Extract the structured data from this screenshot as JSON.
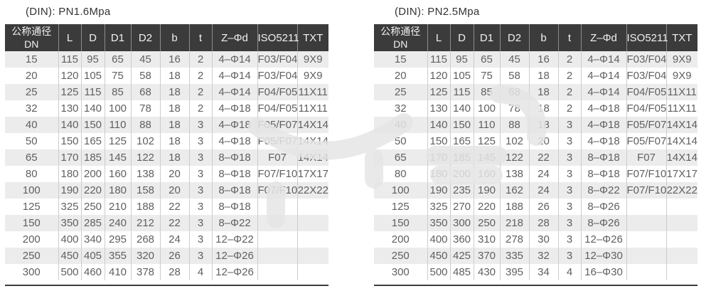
{
  "colors": {
    "header_bg": "#3b3b3b",
    "header_text": "#f1f1f1",
    "row_stripe": "#ececec",
    "row_base": "#ffffff",
    "body_text": "#606060",
    "title_text": "#333333",
    "column_divider": "#cccccc",
    "header_divider": "#8d8d8d",
    "bottom_rule": "#3c3c3c",
    "watermark": "#e6e6e6"
  },
  "tables": [
    {
      "title": "(DIN): PN1.6Mpa",
      "header": {
        "dn_line1": "公称通径",
        "dn_line2": "DN",
        "cols": [
          "L",
          "D",
          "D1",
          "D2",
          "b",
          "t",
          "Z–Φd",
          "ISO5211",
          "TXT"
        ]
      },
      "rows": [
        [
          "15",
          "115",
          "95",
          "65",
          "45",
          "16",
          "2",
          "4–Φ14",
          "F03/F04",
          "9X9"
        ],
        [
          "20",
          "120",
          "105",
          "75",
          "58",
          "18",
          "2",
          "4–Φ14",
          "F03/F04",
          "9X9"
        ],
        [
          "25",
          "125",
          "115",
          "85",
          "68",
          "18",
          "2",
          "4–Φ14",
          "F04/F05",
          "11X11"
        ],
        [
          "32",
          "130",
          "140",
          "100",
          "78",
          "18",
          "2",
          "4–Φ18",
          "F04/F05",
          "11X11"
        ],
        [
          "40",
          "140",
          "150",
          "110",
          "88",
          "18",
          "3",
          "4–Φ18",
          "F05/F07",
          "14X14"
        ],
        [
          "50",
          "150",
          "165",
          "125",
          "102",
          "18",
          "3",
          "4–Φ18",
          "F05/F07",
          "14X14"
        ],
        [
          "65",
          "170",
          "185",
          "145",
          "122",
          "18",
          "3",
          "8–Φ18",
          "F07",
          "14X14"
        ],
        [
          "80",
          "180",
          "200",
          "160",
          "138",
          "20",
          "3",
          "8–Φ18",
          "F07/F10",
          "17X17"
        ],
        [
          "100",
          "190",
          "220",
          "180",
          "158",
          "20",
          "3",
          "8–Φ18",
          "F07/F10",
          "22X22"
        ],
        [
          "125",
          "325",
          "250",
          "210",
          "188",
          "22",
          "3",
          "8–Φ18",
          "",
          ""
        ],
        [
          "150",
          "350",
          "285",
          "240",
          "212",
          "22",
          "3",
          "8–Φ22",
          "",
          ""
        ],
        [
          "200",
          "400",
          "340",
          "295",
          "268",
          "24",
          "3",
          "12–Φ22",
          "",
          ""
        ],
        [
          "250",
          "450",
          "405",
          "355",
          "320",
          "26",
          "3",
          "12–Φ26",
          "",
          ""
        ],
        [
          "300",
          "500",
          "460",
          "410",
          "378",
          "28",
          "4",
          "12–Φ26",
          "",
          ""
        ]
      ]
    },
    {
      "title": "(DIN): PN2.5Mpa",
      "header": {
        "dn_line1": "公称通径",
        "dn_line2": "DN",
        "cols": [
          "L",
          "D",
          "D1",
          "D2",
          "b",
          "t",
          "Z–Φd",
          "ISO5211",
          "TXT"
        ]
      },
      "rows": [
        [
          "15",
          "115",
          "95",
          "65",
          "45",
          "16",
          "2",
          "4–Φ14",
          "F03/F04",
          "9X9"
        ],
        [
          "20",
          "120",
          "105",
          "75",
          "58",
          "18",
          "2",
          "4–Φ14",
          "F03/F04",
          "9X9"
        ],
        [
          "25",
          "125",
          "115",
          "85",
          "68",
          "18",
          "2",
          "4–Φ14",
          "F04/F05",
          "11X11"
        ],
        [
          "32",
          "130",
          "140",
          "100",
          "78",
          "18",
          "2",
          "4–Φ18",
          "F04/F05",
          "11X11"
        ],
        [
          "40",
          "140",
          "150",
          "110",
          "88",
          "18",
          "3",
          "4–Φ18",
          "F05/F07",
          "14X14"
        ],
        [
          "50",
          "150",
          "165",
          "125",
          "102",
          "20",
          "3",
          "4–Φ18",
          "F05/F07",
          "14X14"
        ],
        [
          "65",
          "170",
          "185",
          "145",
          "122",
          "22",
          "3",
          "8–Φ18",
          "F07",
          "14X14"
        ],
        [
          "80",
          "180",
          "200",
          "160",
          "138",
          "24",
          "3",
          "8–Φ18",
          "F07/F10",
          "17X17"
        ],
        [
          "100",
          "190",
          "235",
          "190",
          "162",
          "24",
          "3",
          "8–Φ22",
          "F07/F10",
          "22X22"
        ],
        [
          "125",
          "325",
          "270",
          "220",
          "188",
          "26",
          "3",
          "8–Φ26",
          "",
          ""
        ],
        [
          "150",
          "350",
          "300",
          "250",
          "218",
          "28",
          "3",
          "8–Φ26",
          "",
          ""
        ],
        [
          "200",
          "400",
          "360",
          "310",
          "278",
          "30",
          "3",
          "12–Φ26",
          "",
          ""
        ],
        [
          "250",
          "450",
          "425",
          "370",
          "335",
          "32",
          "3",
          "12–Φ30",
          "",
          ""
        ],
        [
          "300",
          "500",
          "485",
          "430",
          "395",
          "34",
          "4",
          "16–Φ30",
          "",
          ""
        ]
      ]
    }
  ]
}
